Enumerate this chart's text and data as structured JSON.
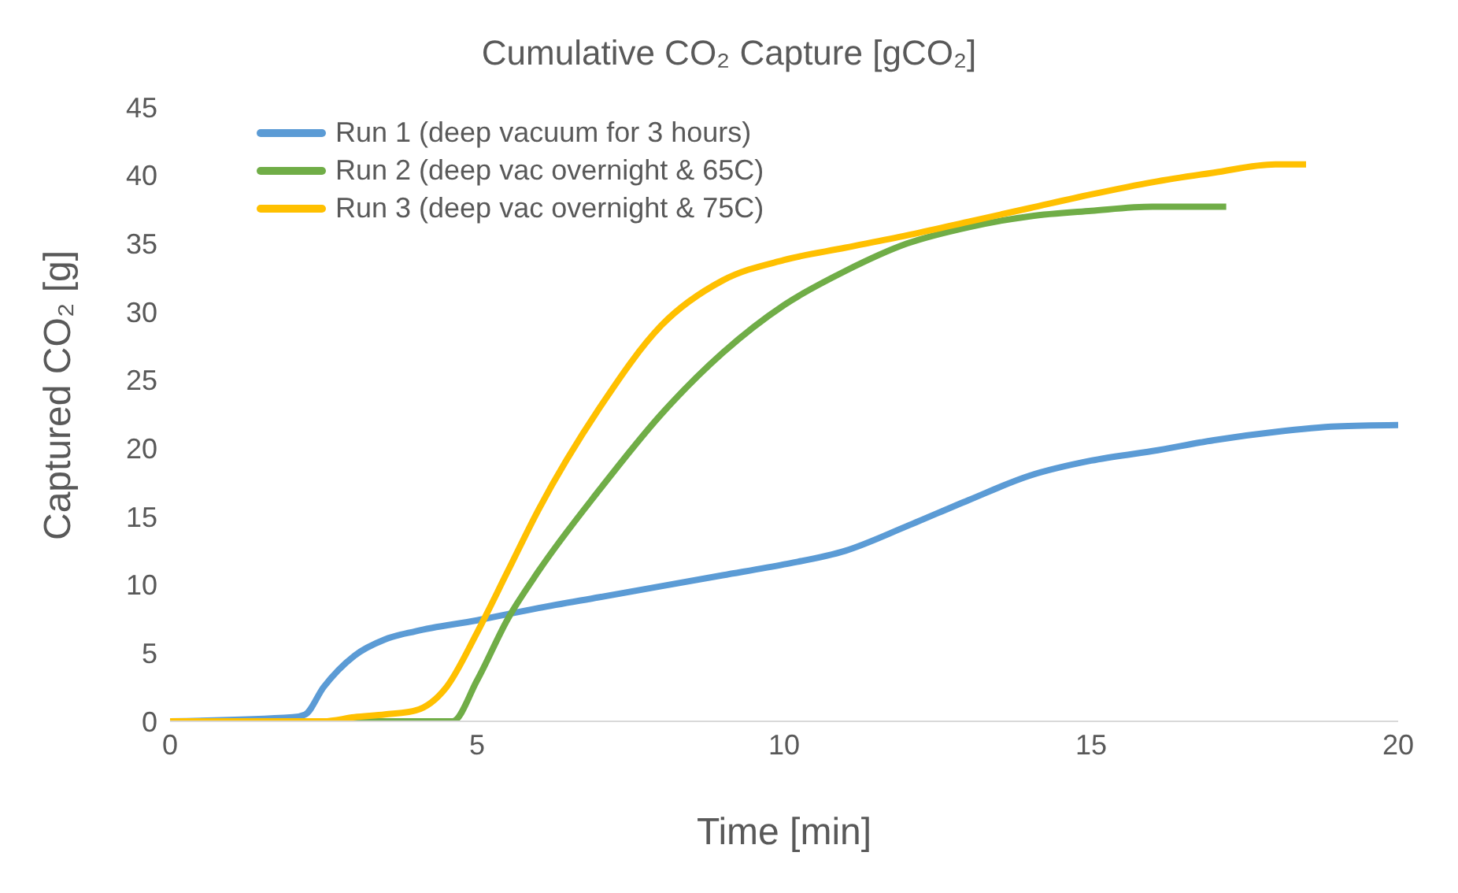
{
  "chart_data": {
    "type": "line",
    "title": "Cumulative CO₂ Capture [gCO₂]",
    "xlabel": "Time [min]",
    "ylabel": "Captured CO₂ [g]",
    "xlim": [
      0,
      20
    ],
    "xticks": [
      0,
      5,
      10,
      15,
      20
    ],
    "ylim": [
      0,
      45
    ],
    "yticks": [
      0,
      5,
      10,
      15,
      20,
      25,
      30,
      35,
      40,
      45
    ],
    "grid": false,
    "legend": "top left",
    "marker": "none",
    "line_style": "solid",
    "series": [
      {
        "name": "Run 1 (deep vacuum for 3 hours)",
        "color": "#5b9bd5",
        "x": [
          0,
          2,
          2.2,
          2.5,
          3,
          3.5,
          4,
          5,
          6,
          7,
          8,
          9,
          10,
          11,
          12,
          13,
          14,
          15,
          16,
          17,
          18,
          19,
          20
        ],
        "values": [
          0,
          0.3,
          0.5,
          2.5,
          4.8,
          6,
          6.6,
          7.4,
          8.3,
          9.1,
          9.9,
          10.7,
          11.5,
          12.5,
          14.3,
          16.2,
          18,
          19.1,
          19.8,
          20.6,
          21.2,
          21.6,
          21.7
        ]
      },
      {
        "name": "Run 2 (deep vac overnight & 65C)",
        "color": "#70ad47",
        "x": [
          0,
          4.5,
          4.6,
          5,
          5.5,
          6,
          7,
          8,
          9,
          10,
          11,
          12,
          13,
          14,
          15,
          16,
          17.2
        ],
        "values": [
          0,
          0,
          0,
          3,
          7.5,
          11,
          17,
          22.5,
          27,
          30.5,
          33,
          35,
          36.2,
          37,
          37.4,
          37.7,
          37.7
        ]
      },
      {
        "name": "Run 3 (deep vac overnight & 75C)",
        "color": "#ffc000",
        "x": [
          0,
          2.5,
          3,
          3.5,
          4,
          4.5,
          5,
          5.5,
          6,
          7,
          8,
          9,
          10,
          11,
          12,
          13,
          14,
          15,
          16,
          17,
          18,
          18.5
        ],
        "values": [
          0,
          0,
          0.3,
          0.5,
          0.8,
          2.5,
          6.5,
          11,
          15.5,
          23,
          29,
          32.3,
          33.8,
          34.7,
          35.6,
          36.6,
          37.6,
          38.6,
          39.5,
          40.2,
          40.8,
          40.8
        ]
      }
    ]
  }
}
